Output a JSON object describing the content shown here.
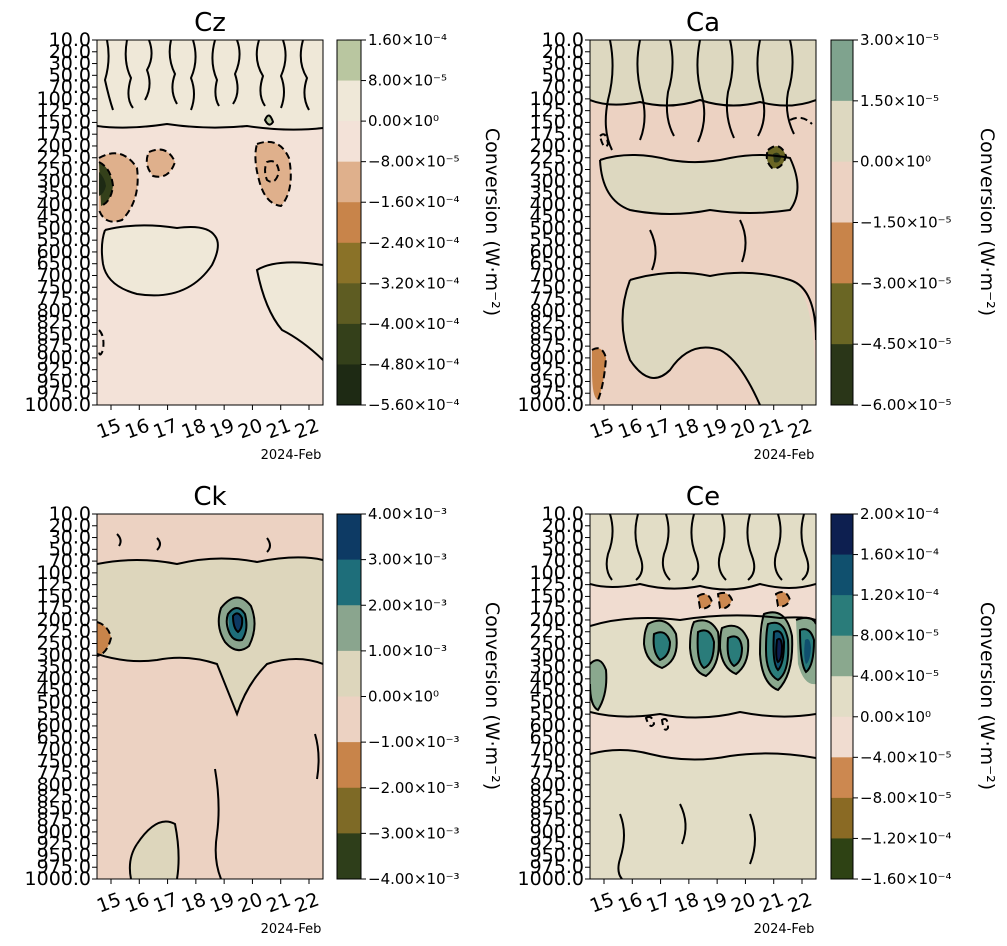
{
  "figure": {
    "date_label": "2024-Feb"
  },
  "chart_data": [
    {
      "type": "contour",
      "title": "Cz",
      "x": [
        "15",
        "16",
        "17",
        "18",
        "19",
        "20",
        "21",
        "22"
      ],
      "y": [
        "10.0",
        "20.0",
        "30.0",
        "50.0",
        "70.0",
        "100.0",
        "125.0",
        "150.0",
        "175.0",
        "200.0",
        "225.0",
        "250.0",
        "300.0",
        "350.0",
        "400.0",
        "450.0",
        "500.0",
        "550.0",
        "600.0",
        "650.0",
        "700.0",
        "750.0",
        "775.0",
        "800.0",
        "825.0",
        "850.0",
        "875.0",
        "900.0",
        "925.0",
        "950.0",
        "975.0",
        "1000.0"
      ],
      "xlabel": "",
      "ylabel": "",
      "x_offset_label": "2024-Feb",
      "colorbar": {
        "label": "Conversion (W·m⁻²)",
        "ticks": [
          "1.60×10⁻⁴",
          "8.00×10⁻⁵",
          "0.00×10⁰",
          "−8.00×10⁻⁵",
          "−1.60×10⁻⁴",
          "−2.40×10⁻⁴",
          "−3.20×10⁻⁴",
          "−4.00×10⁻⁴",
          "−4.80×10⁻⁴",
          "−5.60×10⁻⁴"
        ],
        "colors": [
          "#b9c6a0",
          "#efe8d8",
          "#f3e2d8",
          "#dfb08c",
          "#c8844a",
          "#8a7228",
          "#5e5c22",
          "#34401a",
          "#1e2a14"
        ]
      },
      "background": "#f3e2d8",
      "regions": [
        {
          "color": "#efe8d8",
          "level": "0 to 8e-5",
          "area": "top band 10-150 hPa"
        },
        {
          "color": "#efe8d8",
          "level": "0 to 8e-5",
          "area": "550-650 hPa blob, 15-19 Feb"
        },
        {
          "color": "#dfb08c",
          "level": "-1.6e-4 to -8e-5",
          "area": "225-400 hPa, 14-17 Feb and 20-21 Feb"
        },
        {
          "color": "#1e2a14",
          "level": "below -4.8e-4",
          "area": "~300 hPa, 14 Feb"
        }
      ]
    },
    {
      "type": "contour",
      "title": "Ca",
      "x": [
        "15",
        "16",
        "17",
        "18",
        "19",
        "20",
        "21",
        "22"
      ],
      "y": [
        "10.0",
        "20.0",
        "30.0",
        "50.0",
        "70.0",
        "100.0",
        "125.0",
        "150.0",
        "175.0",
        "200.0",
        "225.0",
        "250.0",
        "300.0",
        "350.0",
        "400.0",
        "450.0",
        "500.0",
        "550.0",
        "600.0",
        "650.0",
        "700.0",
        "750.0",
        "775.0",
        "800.0",
        "825.0",
        "850.0",
        "875.0",
        "900.0",
        "925.0",
        "950.0",
        "975.0",
        "1000.0"
      ],
      "xlabel": "",
      "ylabel": "",
      "x_offset_label": "2024-Feb",
      "colorbar": {
        "label": "Conversion (W·m⁻²)",
        "ticks": [
          "3.00×10⁻⁵",
          "1.50×10⁻⁵",
          "0.00×10⁰",
          "−1.50×10⁻⁵",
          "−3.00×10⁻⁵",
          "−4.50×10⁻⁵",
          "−6.00×10⁻⁵"
        ],
        "colors": [
          "#7fa38e",
          "#ddd8c0",
          "#ecd2c2",
          "#c8844a",
          "#6a6624",
          "#2a3618"
        ]
      },
      "background": "#ecd2c2",
      "regions": [
        {
          "color": "#ddd8c0",
          "level": "0 to 1.5e-5",
          "area": "upper levels and 600-925 hPa, 16-22 Feb"
        },
        {
          "color": "#c8844a",
          "level": "-3e-5 to -1.5e-5",
          "area": "875-975 hPa, 14 Feb"
        },
        {
          "color": "#2a3618",
          "level": "below -4.5e-5",
          "area": "~225 hPa, 21 Feb"
        }
      ]
    },
    {
      "type": "contour",
      "title": "Ck",
      "x": [
        "15",
        "16",
        "17",
        "18",
        "19",
        "20",
        "21",
        "22"
      ],
      "y": [
        "10.0",
        "20.0",
        "30.0",
        "50.0",
        "70.0",
        "100.0",
        "125.0",
        "150.0",
        "175.0",
        "200.0",
        "225.0",
        "250.0",
        "300.0",
        "350.0",
        "400.0",
        "450.0",
        "500.0",
        "550.0",
        "600.0",
        "650.0",
        "700.0",
        "750.0",
        "775.0",
        "800.0",
        "825.0",
        "850.0",
        "875.0",
        "900.0",
        "925.0",
        "950.0",
        "975.0",
        "1000.0"
      ],
      "xlabel": "",
      "ylabel": "",
      "x_offset_label": "2024-Feb",
      "colorbar": {
        "label": "Conversion (W·m⁻²)",
        "ticks": [
          "4.00×10⁻³",
          "3.00×10⁻³",
          "2.00×10⁻³",
          "1.00×10⁻³",
          "0.00×10⁰",
          "−1.00×10⁻³",
          "−2.00×10⁻³",
          "−3.00×10⁻³",
          "−4.00×10⁻³"
        ],
        "colors": [
          "#0d3a64",
          "#1e6e7a",
          "#8aa58e",
          "#ddd6bc",
          "#ecd2c2",
          "#c8844a",
          "#7e6a26",
          "#2e3e1a"
        ]
      },
      "background": "#ecd2c2",
      "regions": [
        {
          "color": "#ddd6bc",
          "level": "0 to 1e-3",
          "area": "100-300 hPa band, 14-22 Feb"
        },
        {
          "color": "#0d3a64",
          "level": "above 3e-3",
          "area": "~200 hPa, 19 Feb"
        },
        {
          "color": "#c8844a",
          "level": "-2e-3 to -1e-3",
          "area": "~250 hPa, 14 Feb"
        }
      ]
    },
    {
      "type": "contour",
      "title": "Ce",
      "x": [
        "15",
        "16",
        "17",
        "18",
        "19",
        "20",
        "21",
        "22"
      ],
      "y": [
        "10.0",
        "20.0",
        "30.0",
        "50.0",
        "70.0",
        "100.0",
        "125.0",
        "150.0",
        "175.0",
        "200.0",
        "225.0",
        "250.0",
        "300.0",
        "350.0",
        "400.0",
        "450.0",
        "500.0",
        "550.0",
        "600.0",
        "650.0",
        "700.0",
        "750.0",
        "775.0",
        "800.0",
        "825.0",
        "850.0",
        "875.0",
        "900.0",
        "925.0",
        "950.0",
        "975.0",
        "1000.0"
      ],
      "xlabel": "",
      "ylabel": "",
      "x_offset_label": "2024-Feb",
      "colorbar": {
        "label": "Conversion (W·m⁻²)",
        "ticks": [
          "2.00×10⁻⁴",
          "1.60×10⁻⁴",
          "1.20×10⁻⁴",
          "8.00×10⁻⁵",
          "4.00×10⁻⁵",
          "0.00×10⁰",
          "−4.00×10⁻⁵",
          "−8.00×10⁻⁵",
          "−1.20×10⁻⁴",
          "−1.60×10⁻⁴"
        ],
        "colors": [
          "#0d1f50",
          "#10506e",
          "#2a7c7a",
          "#8aa88e",
          "#e2ddc6",
          "#f0dcd0",
          "#cc8850",
          "#8a6a24",
          "#2e4214"
        ]
      },
      "background": "#f0dcd0",
      "regions": [
        {
          "color": "#e2ddc6",
          "level": "0 to 4e-5",
          "area": "200-500 hPa band and 750-1000 hPa"
        },
        {
          "color": "#2a7c7a",
          "level": "8e-5 to 1.2e-4",
          "area": "~300 hPa cores, 17-22 Feb"
        },
        {
          "color": "#0d1f50",
          "level": "above 1.6e-4",
          "area": "~300 hPa, 21 Feb"
        }
      ]
    }
  ]
}
